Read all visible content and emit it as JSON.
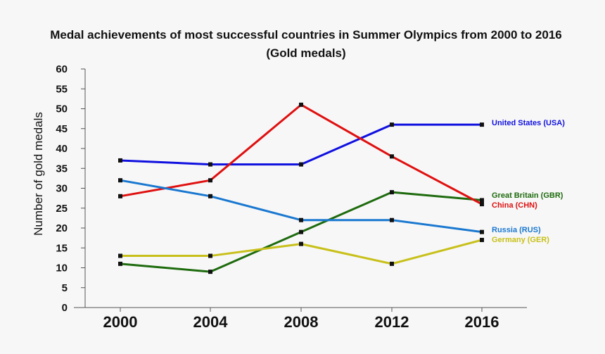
{
  "chart_data": {
    "type": "line",
    "title_line1": "Medal achievements of most successful countries in Summer Olympics from 2000 to 2016",
    "title_line2": "(Gold medals)",
    "ylabel": "Number of gold medals",
    "xlabel": "",
    "categories": [
      "2000",
      "2004",
      "2008",
      "2012",
      "2016"
    ],
    "ylim": [
      0,
      60
    ],
    "yticks": [
      0,
      5,
      10,
      15,
      20,
      25,
      30,
      35,
      40,
      45,
      50,
      55,
      60
    ],
    "grid": false,
    "legend": "direct labels at right end of lines",
    "series": [
      {
        "name": "United States (USA)",
        "color": "#1010e0",
        "values": [
          37,
          36,
          36,
          46,
          46
        ]
      },
      {
        "name": "Great Britain (GBR)",
        "color": "#1e6b0e",
        "values": [
          11,
          9,
          19,
          29,
          27
        ]
      },
      {
        "name": "China (CHN)",
        "color": "#e01010",
        "values": [
          28,
          32,
          51,
          38,
          26
        ]
      },
      {
        "name": "Russia (RUS)",
        "color": "#1a78d0",
        "values": [
          32,
          28,
          22,
          22,
          19
        ]
      },
      {
        "name": "Germany (GER)",
        "color": "#c8c01a",
        "values": [
          13,
          13,
          16,
          11,
          17
        ]
      }
    ]
  }
}
